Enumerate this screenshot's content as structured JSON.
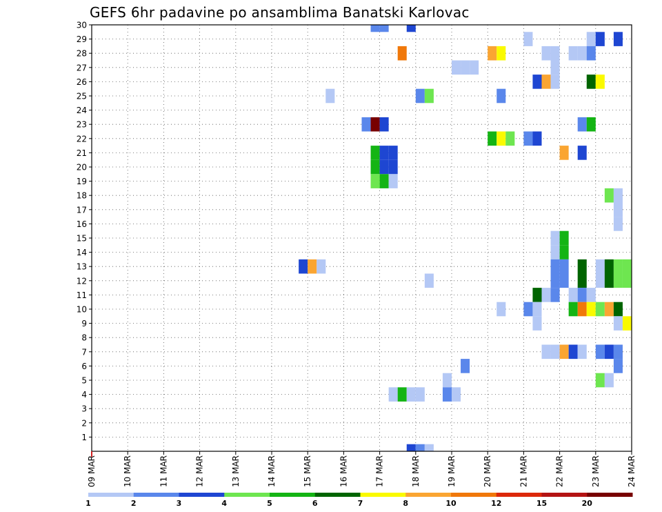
{
  "chart_data": {
    "type": "heatmap",
    "title": "GEFS 6hr padavine po ansamblima Banatski Karlovac",
    "xlabel": "",
    "ylabel": "",
    "x_tick_labels": [
      "09 MAR",
      "10 MAR",
      "11 MAR",
      "12 MAR",
      "13 MAR",
      "14 MAR",
      "15 MAR",
      "16 MAR",
      "17 MAR",
      "18 MAR",
      "19 MAR",
      "20 MAR",
      "21 MAR",
      "22 MAR",
      "23 MAR",
      "24 MAR"
    ],
    "x_range_days": [
      0,
      15
    ],
    "y_tick_labels": [
      "1",
      "2",
      "3",
      "4",
      "5",
      "6",
      "7",
      "8",
      "9",
      "10",
      "11",
      "12",
      "13",
      "14",
      "15",
      "16",
      "17",
      "18",
      "19",
      "20",
      "21",
      "22",
      "23",
      "24",
      "25",
      "26",
      "27",
      "28",
      "29",
      "30"
    ],
    "y_range": [
      0,
      30
    ],
    "grid": true,
    "colorbar": {
      "labels": [
        "1",
        "2",
        "3",
        "4",
        "5",
        "6",
        "7",
        "8",
        "10",
        "12",
        "15",
        "20"
      ],
      "colors": [
        "#b4c8f5",
        "#5a87eb",
        "#1e46d2",
        "#6ee650",
        "#14b414",
        "#006400",
        "#fafa00",
        "#faa532",
        "#f0780a",
        "#dc280a",
        "#b41414",
        "#780000"
      ]
    },
    "cell_days": 0.25,
    "cells": [
      {
        "m": 30,
        "d": 7.75,
        "c": 1
      },
      {
        "m": 30,
        "d": 8.0,
        "c": 1
      },
      {
        "m": 30,
        "d": 8.75,
        "c": 2
      },
      {
        "m": 29,
        "d": 12.0,
        "c": 0
      },
      {
        "m": 29,
        "d": 13.75,
        "c": 0
      },
      {
        "m": 29,
        "d": 14.0,
        "c": 2
      },
      {
        "m": 29,
        "d": 14.5,
        "c": 2
      },
      {
        "m": 28,
        "d": 8.5,
        "c": 8
      },
      {
        "m": 28,
        "d": 11.0,
        "c": 7
      },
      {
        "m": 28,
        "d": 11.25,
        "c": 6
      },
      {
        "m": 28,
        "d": 12.5,
        "c": 0
      },
      {
        "m": 28,
        "d": 12.75,
        "c": 0
      },
      {
        "m": 28,
        "d": 13.25,
        "c": 0
      },
      {
        "m": 28,
        "d": 13.5,
        "c": 0
      },
      {
        "m": 28,
        "d": 13.75,
        "c": 1
      },
      {
        "m": 27,
        "d": 10.0,
        "c": 0
      },
      {
        "m": 27,
        "d": 10.25,
        "c": 0
      },
      {
        "m": 27,
        "d": 10.5,
        "c": 0
      },
      {
        "m": 27,
        "d": 12.75,
        "c": 0
      },
      {
        "m": 26,
        "d": 12.25,
        "c": 2
      },
      {
        "m": 26,
        "d": 12.5,
        "c": 7
      },
      {
        "m": 26,
        "d": 12.75,
        "c": 0
      },
      {
        "m": 26,
        "d": 13.75,
        "c": 5
      },
      {
        "m": 26,
        "d": 14.0,
        "c": 6
      },
      {
        "m": 25,
        "d": 6.5,
        "c": 0
      },
      {
        "m": 25,
        "d": 9.0,
        "c": 1
      },
      {
        "m": 25,
        "d": 9.25,
        "c": 3
      },
      {
        "m": 25,
        "d": 11.25,
        "c": 1
      },
      {
        "m": 23,
        "d": 7.5,
        "c": 1
      },
      {
        "m": 23,
        "d": 7.75,
        "c": 11
      },
      {
        "m": 23,
        "d": 8.0,
        "c": 2
      },
      {
        "m": 23,
        "d": 13.5,
        "c": 1
      },
      {
        "m": 23,
        "d": 13.75,
        "c": 4
      },
      {
        "m": 22,
        "d": 11.0,
        "c": 4
      },
      {
        "m": 22,
        "d": 11.25,
        "c": 6
      },
      {
        "m": 22,
        "d": 11.5,
        "c": 3
      },
      {
        "m": 22,
        "d": 12.0,
        "c": 1
      },
      {
        "m": 22,
        "d": 12.25,
        "c": 2
      },
      {
        "m": 21,
        "d": 7.75,
        "c": 4
      },
      {
        "m": 21,
        "d": 8.0,
        "c": 2
      },
      {
        "m": 21,
        "d": 8.25,
        "c": 2
      },
      {
        "m": 21,
        "d": 13.0,
        "c": 7
      },
      {
        "m": 21,
        "d": 13.5,
        "c": 2
      },
      {
        "m": 20,
        "d": 7.75,
        "c": 4
      },
      {
        "m": 20,
        "d": 8.0,
        "c": 2
      },
      {
        "m": 20,
        "d": 8.25,
        "c": 2
      },
      {
        "m": 19,
        "d": 7.75,
        "c": 3
      },
      {
        "m": 19,
        "d": 8.0,
        "c": 4
      },
      {
        "m": 19,
        "d": 8.25,
        "c": 0
      },
      {
        "m": 18,
        "d": 14.25,
        "c": 3
      },
      {
        "m": 18,
        "d": 14.5,
        "c": 0
      },
      {
        "m": 17,
        "d": 14.5,
        "c": 0
      },
      {
        "m": 16,
        "d": 14.5,
        "c": 0
      },
      {
        "m": 15,
        "d": 12.75,
        "c": 0
      },
      {
        "m": 15,
        "d": 13.0,
        "c": 4
      },
      {
        "m": 14,
        "d": 12.75,
        "c": 0
      },
      {
        "m": 14,
        "d": 13.0,
        "c": 4
      },
      {
        "m": 13,
        "d": 5.75,
        "c": 2
      },
      {
        "m": 13,
        "d": 6.0,
        "c": 7
      },
      {
        "m": 13,
        "d": 6.25,
        "c": 0
      },
      {
        "m": 13,
        "d": 12.75,
        "c": 1
      },
      {
        "m": 13,
        "d": 13.0,
        "c": 1
      },
      {
        "m": 13,
        "d": 13.5,
        "c": 5
      },
      {
        "m": 13,
        "d": 14.0,
        "c": 0
      },
      {
        "m": 13,
        "d": 14.25,
        "c": 5
      },
      {
        "m": 13,
        "d": 14.5,
        "c": 3
      },
      {
        "m": 13,
        "d": 14.75,
        "c": 3
      },
      {
        "m": 12,
        "d": 9.25,
        "c": 0
      },
      {
        "m": 12,
        "d": 12.75,
        "c": 1
      },
      {
        "m": 12,
        "d": 13.0,
        "c": 1
      },
      {
        "m": 12,
        "d": 13.5,
        "c": 5
      },
      {
        "m": 12,
        "d": 14.0,
        "c": 0
      },
      {
        "m": 12,
        "d": 14.25,
        "c": 5
      },
      {
        "m": 12,
        "d": 14.5,
        "c": 3
      },
      {
        "m": 12,
        "d": 14.75,
        "c": 3
      },
      {
        "m": 11,
        "d": 12.25,
        "c": 5
      },
      {
        "m": 11,
        "d": 12.5,
        "c": 0
      },
      {
        "m": 11,
        "d": 12.75,
        "c": 1
      },
      {
        "m": 11,
        "d": 13.25,
        "c": 0
      },
      {
        "m": 11,
        "d": 13.5,
        "c": 1
      },
      {
        "m": 11,
        "d": 13.75,
        "c": 0
      },
      {
        "m": 10,
        "d": 11.25,
        "c": 0
      },
      {
        "m": 10,
        "d": 12.0,
        "c": 1
      },
      {
        "m": 10,
        "d": 12.25,
        "c": 0
      },
      {
        "m": 10,
        "d": 13.25,
        "c": 4
      },
      {
        "m": 10,
        "d": 13.5,
        "c": 8
      },
      {
        "m": 10,
        "d": 13.75,
        "c": 6
      },
      {
        "m": 10,
        "d": 14.0,
        "c": 3
      },
      {
        "m": 10,
        "d": 14.25,
        "c": 7
      },
      {
        "m": 10,
        "d": 14.5,
        "c": 5
      },
      {
        "m": 9,
        "d": 12.25,
        "c": 0
      },
      {
        "m": 9,
        "d": 14.5,
        "c": 0
      },
      {
        "m": 9,
        "d": 14.75,
        "c": 6
      },
      {
        "m": 7,
        "d": 12.5,
        "c": 0
      },
      {
        "m": 7,
        "d": 12.75,
        "c": 0
      },
      {
        "m": 7,
        "d": 13.0,
        "c": 7
      },
      {
        "m": 7,
        "d": 13.25,
        "c": 2
      },
      {
        "m": 7,
        "d": 13.5,
        "c": 0
      },
      {
        "m": 7,
        "d": 14.0,
        "c": 1
      },
      {
        "m": 7,
        "d": 14.25,
        "c": 2
      },
      {
        "m": 7,
        "d": 14.5,
        "c": 1
      },
      {
        "m": 6,
        "d": 10.25,
        "c": 1
      },
      {
        "m": 6,
        "d": 14.5,
        "c": 1
      },
      {
        "m": 5,
        "d": 9.75,
        "c": 0
      },
      {
        "m": 5,
        "d": 14.0,
        "c": 3
      },
      {
        "m": 5,
        "d": 14.25,
        "c": 0
      },
      {
        "m": 4,
        "d": 8.25,
        "c": 0
      },
      {
        "m": 4,
        "d": 8.5,
        "c": 4
      },
      {
        "m": 4,
        "d": 8.75,
        "c": 0
      },
      {
        "m": 4,
        "d": 9.0,
        "c": 0
      },
      {
        "m": 4,
        "d": 9.75,
        "c": 1
      },
      {
        "m": 4,
        "d": 10.0,
        "c": 0
      },
      {
        "m": 0,
        "d": 8.75,
        "c": 2
      },
      {
        "m": 0,
        "d": 9.0,
        "c": 1
      },
      {
        "m": 0,
        "d": 9.25,
        "c": 0
      }
    ]
  }
}
